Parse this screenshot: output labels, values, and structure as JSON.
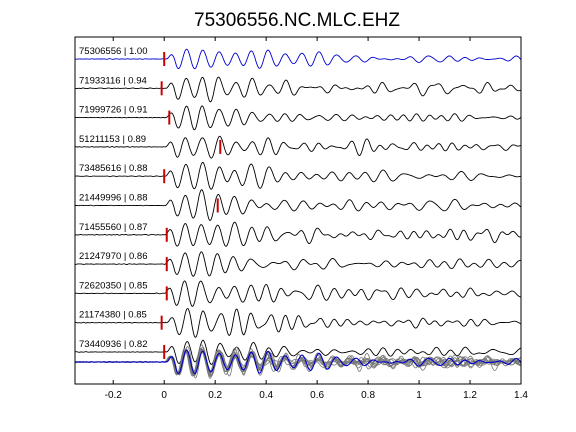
{
  "chart_data": {
    "type": "line",
    "title": "75306556.NC.MLC.EHZ",
    "xlabel": "",
    "ylabel": "",
    "xlim": [
      -0.35,
      1.4
    ],
    "x_ticks": [
      -0.2,
      0,
      0.2,
      0.4,
      0.6,
      0.8,
      1,
      1.2,
      1.4
    ],
    "x_tick_labels": [
      "-0.2",
      "0",
      "0.2",
      "0.4",
      "0.6",
      "0.8",
      "1",
      "1.2",
      "1.4"
    ],
    "grid": false,
    "series": [
      {
        "name": "75306556 | 1.00",
        "color": "#0000cc",
        "pick_time": 0.0
      },
      {
        "name": "71933116 | 0.94",
        "color": "#000000",
        "pick_time": -0.01
      },
      {
        "name": "71999726 | 0.91",
        "color": "#000000",
        "pick_time": 0.02
      },
      {
        "name": "51211153 | 0.89",
        "color": "#000000",
        "pick_time": 0.22
      },
      {
        "name": "73485616 | 0.88",
        "color": "#000000",
        "pick_time": 0.0
      },
      {
        "name": "21449996 | 0.88",
        "color": "#000000",
        "pick_time": 0.21
      },
      {
        "name": "71455560 | 0.87",
        "color": "#000000",
        "pick_time": 0.01
      },
      {
        "name": "21247970 | 0.86",
        "color": "#000000",
        "pick_time": 0.01
      },
      {
        "name": "72620350 | 0.85",
        "color": "#000000",
        "pick_time": 0.01
      },
      {
        "name": "21174380 | 0.85",
        "color": "#000000",
        "pick_time": -0.01
      },
      {
        "name": "73440936 | 0.82",
        "color": "#000000",
        "pick_time": 0.0
      }
    ],
    "stack_trace_color": "#777777",
    "stack_reference_color": "#0000cc",
    "pick_marker_color": "#cc0000"
  }
}
